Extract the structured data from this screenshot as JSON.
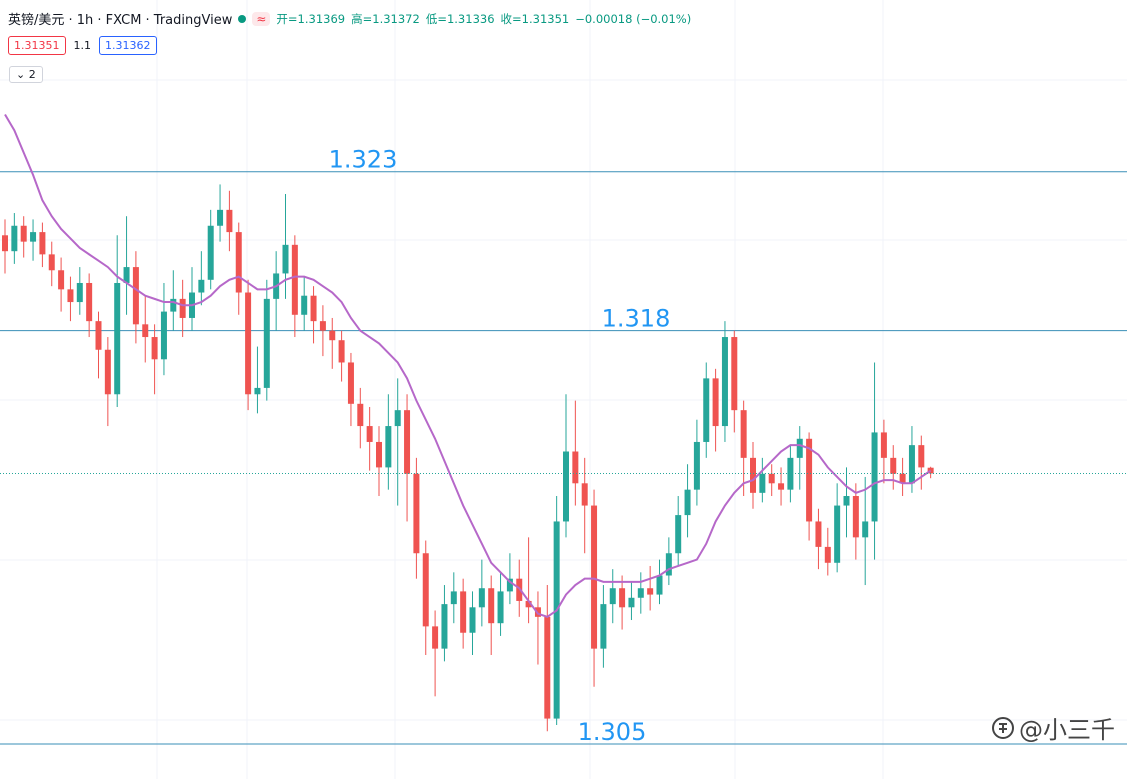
{
  "header": {
    "symbol": "英镑/美元 · 1h · FXCM · TradingView",
    "badge": "≈",
    "ohlc": [
      "开=1.31369",
      "高=1.31372",
      "低=1.31336",
      "收=1.31351",
      "−0.00018 (−0.01%)"
    ],
    "bid": "1.31351",
    "spread": "1.1",
    "ask": "1.31362",
    "collapse": "2",
    "watermark": "@小三千"
  },
  "chart_data": {
    "type": "candlestick",
    "ylim": [
      1.3039,
      1.3284
    ],
    "up_color": "#26a69a",
    "down_color": "#ef5350",
    "open": [
      1.321,
      1.3205,
      1.3213,
      1.3208,
      1.3211,
      1.3204,
      1.3199,
      1.3193,
      1.3189,
      1.3195,
      1.3183,
      1.3174,
      1.316,
      1.3195,
      1.32,
      1.3182,
      1.3178,
      1.3171,
      1.3186,
      1.319,
      1.3184,
      1.3192,
      1.3196,
      1.3213,
      1.3218,
      1.3211,
      1.3192,
      1.316,
      1.3162,
      1.319,
      1.3198,
      1.3207,
      1.3185,
      1.3191,
      1.3183,
      1.318,
      1.3177,
      1.317,
      1.3157,
      1.315,
      1.3145,
      1.3137,
      1.315,
      1.3155,
      1.3135,
      1.311,
      1.3087,
      1.308,
      1.3094,
      1.3098,
      1.3085,
      1.3093,
      1.3099,
      1.3088,
      1.3098,
      1.3102,
      1.3095,
      1.3093,
      1.309,
      1.3058,
      1.312,
      1.3142,
      1.3132,
      1.3125,
      1.308,
      1.3094,
      1.3099,
      1.3093,
      1.3096,
      1.3099,
      1.3097,
      1.3103,
      1.311,
      1.3122,
      1.313,
      1.3145,
      1.3165,
      1.315,
      1.3178,
      1.3155,
      1.314,
      1.3129,
      1.3135,
      1.3132,
      1.313,
      1.314,
      1.3146,
      1.312,
      1.3112,
      1.3107,
      1.3125,
      1.3128,
      1.3115,
      1.312,
      1.3148,
      1.314,
      1.3135,
      1.3132,
      1.3144,
      1.31369
    ],
    "high": [
      1.3215,
      1.3217,
      1.3216,
      1.3215,
      1.3214,
      1.3208,
      1.3203,
      1.3197,
      1.32,
      1.3198,
      1.3186,
      1.3178,
      1.321,
      1.3216,
      1.3205,
      1.3191,
      1.3182,
      1.3195,
      1.3199,
      1.3196,
      1.32,
      1.3205,
      1.3218,
      1.3226,
      1.3224,
      1.3214,
      1.3196,
      1.3175,
      1.3196,
      1.3205,
      1.3223,
      1.321,
      1.3197,
      1.3194,
      1.3188,
      1.3184,
      1.318,
      1.3173,
      1.3162,
      1.3156,
      1.315,
      1.316,
      1.3165,
      1.316,
      1.314,
      1.3114,
      1.3092,
      1.31,
      1.3104,
      1.3102,
      1.3098,
      1.3108,
      1.3103,
      1.3104,
      1.311,
      1.3108,
      1.3115,
      1.3098,
      1.31,
      1.3128,
      1.316,
      1.3158,
      1.314,
      1.313,
      1.31,
      1.3105,
      1.3103,
      1.3101,
      1.3104,
      1.3106,
      1.3108,
      1.3115,
      1.3128,
      1.3138,
      1.3152,
      1.317,
      1.3168,
      1.3183,
      1.318,
      1.3158,
      1.3145,
      1.314,
      1.3138,
      1.3137,
      1.3144,
      1.315,
      1.3148,
      1.3124,
      1.3118,
      1.3132,
      1.3137,
      1.3132,
      1.3134,
      1.317,
      1.3152,
      1.3144,
      1.314,
      1.315,
      1.3147,
      1.31372
    ],
    "low": [
      1.3198,
      1.3201,
      1.3203,
      1.3202,
      1.32,
      1.3194,
      1.3186,
      1.3183,
      1.3185,
      1.3178,
      1.3165,
      1.315,
      1.3156,
      1.3185,
      1.3176,
      1.317,
      1.316,
      1.3166,
      1.318,
      1.3178,
      1.318,
      1.3188,
      1.3193,
      1.3208,
      1.3205,
      1.3185,
      1.3155,
      1.3154,
      1.3158,
      1.318,
      1.319,
      1.3178,
      1.318,
      1.3176,
      1.3172,
      1.3168,
      1.3164,
      1.315,
      1.3143,
      1.3136,
      1.3128,
      1.313,
      1.3125,
      1.312,
      1.3102,
      1.3078,
      1.3065,
      1.3076,
      1.3088,
      1.308,
      1.3078,
      1.3087,
      1.3078,
      1.3084,
      1.3094,
      1.309,
      1.3088,
      1.3075,
      1.3054,
      1.3056,
      1.3115,
      1.3125,
      1.311,
      1.3068,
      1.3074,
      1.3088,
      1.3086,
      1.3089,
      1.3091,
      1.3092,
      1.3094,
      1.31,
      1.3106,
      1.3115,
      1.3125,
      1.314,
      1.3142,
      1.3145,
      1.3148,
      1.3128,
      1.3124,
      1.3126,
      1.3128,
      1.3125,
      1.3126,
      1.313,
      1.3114,
      1.3105,
      1.3103,
      1.3104,
      1.3115,
      1.3108,
      1.31,
      1.3108,
      1.3132,
      1.313,
      1.3128,
      1.3129,
      1.313,
      1.31336
    ],
    "close": [
      1.3205,
      1.3213,
      1.3208,
      1.3211,
      1.3204,
      1.3199,
      1.3193,
      1.3189,
      1.3195,
      1.3183,
      1.3174,
      1.316,
      1.3195,
      1.32,
      1.3182,
      1.3178,
      1.3171,
      1.3186,
      1.319,
      1.3184,
      1.3192,
      1.3196,
      1.3213,
      1.3218,
      1.3211,
      1.3192,
      1.316,
      1.3162,
      1.319,
      1.3198,
      1.3207,
      1.3185,
      1.3191,
      1.3183,
      1.318,
      1.3177,
      1.317,
      1.3157,
      1.315,
      1.3145,
      1.3137,
      1.315,
      1.3155,
      1.3135,
      1.311,
      1.3087,
      1.308,
      1.3094,
      1.3098,
      1.3085,
      1.3093,
      1.3099,
      1.3088,
      1.3098,
      1.3102,
      1.3095,
      1.3093,
      1.309,
      1.3058,
      1.312,
      1.3142,
      1.3132,
      1.3125,
      1.308,
      1.3094,
      1.3099,
      1.3093,
      1.3096,
      1.3099,
      1.3097,
      1.3103,
      1.311,
      1.3122,
      1.313,
      1.3145,
      1.3165,
      1.315,
      1.3178,
      1.3155,
      1.314,
      1.3129,
      1.3135,
      1.3132,
      1.313,
      1.314,
      1.3146,
      1.312,
      1.3112,
      1.3107,
      1.3125,
      1.3128,
      1.3115,
      1.312,
      1.3148,
      1.314,
      1.3135,
      1.3132,
      1.3144,
      1.3137,
      1.31351
    ],
    "ma": {
      "color": "#b668c9",
      "values": [
        1.3248,
        1.3243,
        1.3236,
        1.3229,
        1.3221,
        1.3216,
        1.3212,
        1.3209,
        1.3206,
        1.3204,
        1.3202,
        1.32,
        1.3197,
        1.3195,
        1.3193,
        1.3191,
        1.319,
        1.3189,
        1.3189,
        1.3188,
        1.3188,
        1.3189,
        1.3191,
        1.3194,
        1.3196,
        1.3197,
        1.3195,
        1.3193,
        1.3193,
        1.3194,
        1.3196,
        1.3197,
        1.3197,
        1.3196,
        1.3194,
        1.3192,
        1.3189,
        1.3184,
        1.318,
        1.3178,
        1.3176,
        1.3173,
        1.317,
        1.3165,
        1.3158,
        1.3152,
        1.3146,
        1.3139,
        1.3132,
        1.3125,
        1.3119,
        1.3113,
        1.3107,
        1.3104,
        1.3101,
        1.3099,
        1.3095,
        1.3091,
        1.309,
        1.3092,
        1.3097,
        1.31,
        1.3102,
        1.3102,
        1.3101,
        1.3101,
        1.3101,
        1.3101,
        1.3101,
        1.3102,
        1.3103,
        1.3105,
        1.3106,
        1.3107,
        1.3108,
        1.3113,
        1.312,
        1.3125,
        1.3129,
        1.3132,
        1.3133,
        1.3136,
        1.3139,
        1.3142,
        1.3144,
        1.3144,
        1.3143,
        1.3141,
        1.3137,
        1.3134,
        1.3131,
        1.3129,
        1.313,
        1.3132,
        1.3133,
        1.3133,
        1.3132,
        1.3132,
        1.3134,
        1.3136
      ]
    },
    "levels": [
      {
        "value": 1.323,
        "label": "1.323"
      },
      {
        "value": 1.318,
        "label": "1.318"
      },
      {
        "value": 1.305,
        "label": "1.305"
      }
    ],
    "level_color": "#3a8fb7",
    "level_label_color": "#2196f3",
    "last_color": "#26a69a"
  }
}
